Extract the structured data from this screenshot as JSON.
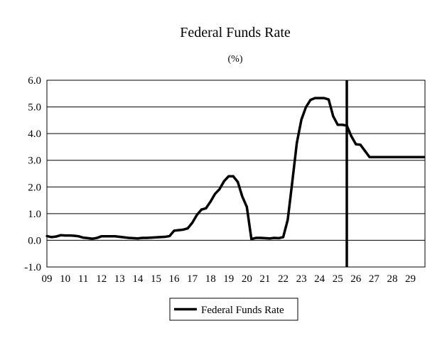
{
  "chart_data": {
    "type": "line",
    "title": "Federal Funds Rate",
    "subtitle": "(%)",
    "xlabel": "",
    "ylabel": "",
    "x_ticks": [
      "09",
      "10",
      "11",
      "12",
      "13",
      "14",
      "15",
      "16",
      "17",
      "18",
      "19",
      "20",
      "21",
      "22",
      "23",
      "24",
      "25",
      "26",
      "27",
      "28",
      "29"
    ],
    "y_ticks": [
      "6.0",
      "5.0",
      "4.0",
      "3.0",
      "2.0",
      "1.0",
      "0.0",
      "-1.0"
    ],
    "ylim": [
      -1.0,
      6.0
    ],
    "xlim": [
      2009.0,
      2029.8
    ],
    "grid": "horizontal",
    "legend_position": "bottom-center",
    "vertical_marker_x": 2025.5,
    "series": [
      {
        "name": "Federal Funds Rate",
        "color": "#000000",
        "points": [
          [
            2009.0,
            0.16
          ],
          [
            2009.25,
            0.12
          ],
          [
            2009.5,
            0.14
          ],
          [
            2009.75,
            0.19
          ],
          [
            2010.0,
            0.18
          ],
          [
            2010.25,
            0.18
          ],
          [
            2010.5,
            0.17
          ],
          [
            2010.75,
            0.15
          ],
          [
            2011.0,
            0.1
          ],
          [
            2011.25,
            0.08
          ],
          [
            2011.5,
            0.06
          ],
          [
            2011.75,
            0.09
          ],
          [
            2012.0,
            0.15
          ],
          [
            2012.25,
            0.15
          ],
          [
            2012.5,
            0.15
          ],
          [
            2012.75,
            0.15
          ],
          [
            2013.0,
            0.13
          ],
          [
            2013.25,
            0.11
          ],
          [
            2013.5,
            0.09
          ],
          [
            2013.75,
            0.08
          ],
          [
            2014.0,
            0.07
          ],
          [
            2014.25,
            0.09
          ],
          [
            2014.5,
            0.09
          ],
          [
            2014.75,
            0.1
          ],
          [
            2015.0,
            0.11
          ],
          [
            2015.25,
            0.12
          ],
          [
            2015.5,
            0.13
          ],
          [
            2015.75,
            0.16
          ],
          [
            2016.0,
            0.36
          ],
          [
            2016.25,
            0.38
          ],
          [
            2016.5,
            0.4
          ],
          [
            2016.75,
            0.45
          ],
          [
            2017.0,
            0.66
          ],
          [
            2017.25,
            0.95
          ],
          [
            2017.5,
            1.15
          ],
          [
            2017.75,
            1.2
          ],
          [
            2018.0,
            1.45
          ],
          [
            2018.25,
            1.74
          ],
          [
            2018.5,
            1.92
          ],
          [
            2018.75,
            2.22
          ],
          [
            2019.0,
            2.4
          ],
          [
            2019.25,
            2.4
          ],
          [
            2019.5,
            2.19
          ],
          [
            2019.75,
            1.64
          ],
          [
            2020.0,
            1.25
          ],
          [
            2020.25,
            0.05
          ],
          [
            2020.5,
            0.09
          ],
          [
            2020.75,
            0.09
          ],
          [
            2021.0,
            0.08
          ],
          [
            2021.25,
            0.07
          ],
          [
            2021.5,
            0.09
          ],
          [
            2021.75,
            0.08
          ],
          [
            2022.0,
            0.12
          ],
          [
            2022.25,
            0.77
          ],
          [
            2022.5,
            2.19
          ],
          [
            2022.75,
            3.65
          ],
          [
            2023.0,
            4.52
          ],
          [
            2023.25,
            4.99
          ],
          [
            2023.5,
            5.26
          ],
          [
            2023.75,
            5.33
          ],
          [
            2024.0,
            5.33
          ],
          [
            2024.25,
            5.33
          ],
          [
            2024.5,
            5.28
          ],
          [
            2024.75,
            4.65
          ],
          [
            2025.0,
            4.33
          ],
          [
            2025.25,
            4.33
          ],
          [
            2025.5,
            4.3
          ],
          [
            2025.75,
            3.9
          ],
          [
            2026.0,
            3.6
          ],
          [
            2026.25,
            3.58
          ],
          [
            2026.5,
            3.35
          ],
          [
            2026.75,
            3.12
          ],
          [
            2027.0,
            3.12
          ],
          [
            2027.5,
            3.12
          ],
          [
            2028.0,
            3.12
          ],
          [
            2028.5,
            3.12
          ],
          [
            2029.0,
            3.12
          ],
          [
            2029.5,
            3.12
          ],
          [
            2029.75,
            3.12
          ]
        ]
      }
    ]
  }
}
